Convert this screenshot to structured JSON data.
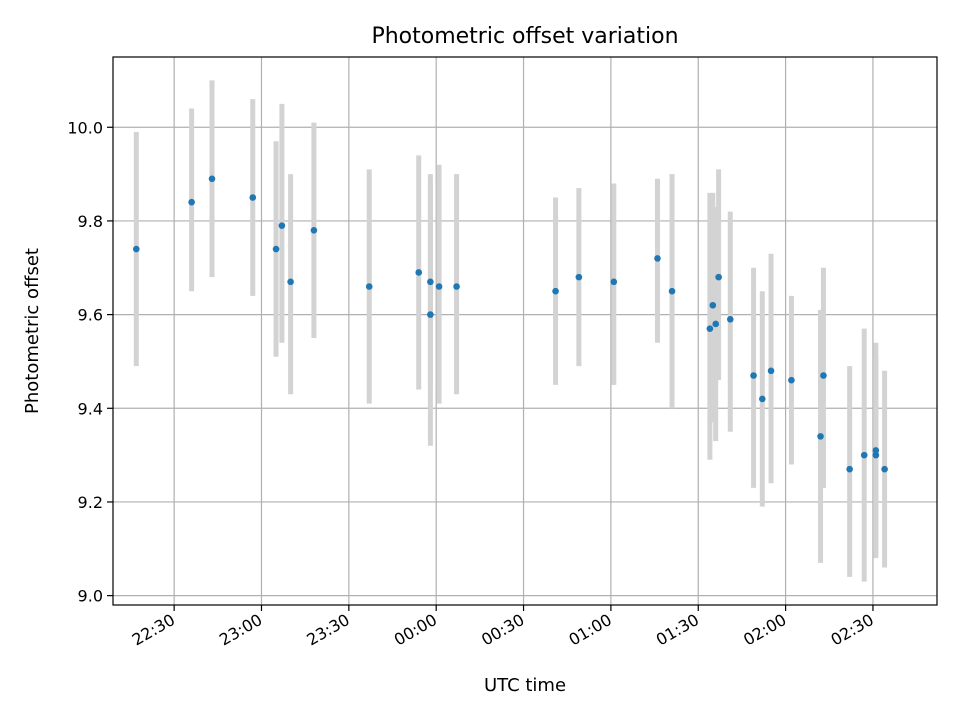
{
  "chart_data": {
    "type": "scatter",
    "title": "Photometric offset variation",
    "xlabel": "UTC time",
    "ylabel": "Photometric offset",
    "x_unit": "UTC time (HH:MM), second day continues past midnight",
    "xlim": [
      "22:09",
      "02:52"
    ],
    "ylim": [
      8.98,
      10.15
    ],
    "xticks": [
      "22:30",
      "23:00",
      "23:30",
      "00:00",
      "00:30",
      "01:00",
      "01:30",
      "02:00",
      "02:30"
    ],
    "yticks": [
      9.0,
      9.2,
      9.4,
      9.6,
      9.8,
      10.0
    ],
    "ytick_labels": [
      "9.0",
      "9.2",
      "9.4",
      "9.6",
      "9.8",
      "10.0"
    ],
    "grid": true,
    "colors": {
      "point": "#1f77b4",
      "errorbar": "#d3d3d3"
    },
    "points": [
      {
        "x": "22:17",
        "y": 9.74,
        "ylow": 9.49,
        "yhigh": 9.99
      },
      {
        "x": "22:36",
        "y": 9.84,
        "ylow": 9.65,
        "yhigh": 10.04
      },
      {
        "x": "22:43",
        "y": 9.89,
        "ylow": 9.68,
        "yhigh": 10.1
      },
      {
        "x": "22:57",
        "y": 9.85,
        "ylow": 9.64,
        "yhigh": 10.06
      },
      {
        "x": "23:05",
        "y": 9.74,
        "ylow": 9.51,
        "yhigh": 9.97
      },
      {
        "x": "23:07",
        "y": 9.79,
        "ylow": 9.54,
        "yhigh": 10.05
      },
      {
        "x": "23:10",
        "y": 9.67,
        "ylow": 9.43,
        "yhigh": 9.9
      },
      {
        "x": "23:18",
        "y": 9.78,
        "ylow": 9.55,
        "yhigh": 10.01
      },
      {
        "x": "23:37",
        "y": 9.66,
        "ylow": 9.41,
        "yhigh": 9.91
      },
      {
        "x": "23:54",
        "y": 9.69,
        "ylow": 9.44,
        "yhigh": 9.94
      },
      {
        "x": "23:58",
        "y": 9.6,
        "ylow": 9.32,
        "yhigh": 9.88
      },
      {
        "x": "23:58",
        "y": 9.67,
        "ylow": 9.45,
        "yhigh": 9.9
      },
      {
        "x": "00:01",
        "y": 9.66,
        "ylow": 9.41,
        "yhigh": 9.92
      },
      {
        "x": "00:07",
        "y": 9.66,
        "ylow": 9.43,
        "yhigh": 9.9
      },
      {
        "x": "00:41",
        "y": 9.65,
        "ylow": 9.45,
        "yhigh": 9.85
      },
      {
        "x": "00:49",
        "y": 9.68,
        "ylow": 9.49,
        "yhigh": 9.87
      },
      {
        "x": "01:01",
        "y": 9.67,
        "ylow": 9.45,
        "yhigh": 9.88
      },
      {
        "x": "01:16",
        "y": 9.72,
        "ylow": 9.54,
        "yhigh": 9.89
      },
      {
        "x": "01:21",
        "y": 9.65,
        "ylow": 9.4,
        "yhigh": 9.9
      },
      {
        "x": "01:34",
        "y": 9.57,
        "ylow": 9.29,
        "yhigh": 9.86
      },
      {
        "x": "01:35",
        "y": 9.62,
        "ylow": 9.37,
        "yhigh": 9.86
      },
      {
        "x": "01:36",
        "y": 9.58,
        "ylow": 9.33,
        "yhigh": 9.83
      },
      {
        "x": "01:37",
        "y": 9.68,
        "ylow": 9.46,
        "yhigh": 9.91
      },
      {
        "x": "01:41",
        "y": 9.59,
        "ylow": 9.35,
        "yhigh": 9.82
      },
      {
        "x": "01:49",
        "y": 9.47,
        "ylow": 9.23,
        "yhigh": 9.7
      },
      {
        "x": "01:52",
        "y": 9.42,
        "ylow": 9.19,
        "yhigh": 9.65
      },
      {
        "x": "01:55",
        "y": 9.48,
        "ylow": 9.24,
        "yhigh": 9.73
      },
      {
        "x": "02:02",
        "y": 9.46,
        "ylow": 9.28,
        "yhigh": 9.64
      },
      {
        "x": "02:12",
        "y": 9.34,
        "ylow": 9.07,
        "yhigh": 9.61
      },
      {
        "x": "02:13",
        "y": 9.47,
        "ylow": 9.23,
        "yhigh": 9.7
      },
      {
        "x": "02:22",
        "y": 9.27,
        "ylow": 9.04,
        "yhigh": 9.49
      },
      {
        "x": "02:27",
        "y": 9.3,
        "ylow": 9.03,
        "yhigh": 9.57
      },
      {
        "x": "02:31",
        "y": 9.3,
        "ylow": 9.08,
        "yhigh": 9.51
      },
      {
        "x": "02:31",
        "y": 9.31,
        "ylow": 9.09,
        "yhigh": 9.54
      },
      {
        "x": "02:34",
        "y": 9.27,
        "ylow": 9.06,
        "yhigh": 9.48
      }
    ]
  }
}
